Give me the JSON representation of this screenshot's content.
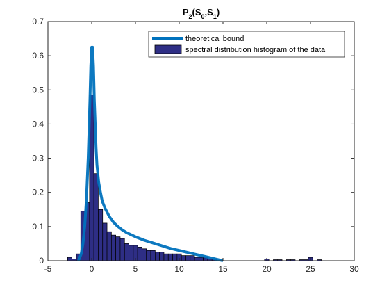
{
  "chart_data": {
    "type": "bar",
    "title": {
      "main": "P",
      "sub1": "2",
      "open": "(S",
      "sub2": "0",
      "mid": ",S",
      "sub3": "1",
      "close": ")"
    },
    "xlim": [
      -5,
      30
    ],
    "ylim": [
      0,
      0.7
    ],
    "xticks": [
      -5,
      0,
      5,
      10,
      15,
      20,
      25,
      30
    ],
    "yticks": [
      0,
      0.1,
      0.2,
      0.3,
      0.4,
      0.5,
      0.6,
      0.7
    ],
    "xtick_labels": [
      "-5",
      "0",
      "5",
      "10",
      "15",
      "20",
      "25",
      "30"
    ],
    "ytick_labels": [
      "0",
      "0.1",
      "0.2",
      "0.3",
      "0.4",
      "0.5",
      "0.6",
      "0.7"
    ],
    "grid": false,
    "legend_position": "top-right",
    "series": [
      {
        "name": "theoretical bound",
        "kind": "line",
        "color": "#0072bd",
        "x": [
          -1.5,
          -1.2,
          -1.0,
          -0.8,
          -0.6,
          -0.4,
          -0.2,
          -0.1,
          0.0,
          0.1,
          0.2,
          0.3,
          0.4,
          0.5,
          0.6,
          0.8,
          1.0,
          1.2,
          1.5,
          2.0,
          2.5,
          3.0,
          3.5,
          4.0,
          5.0,
          6.0,
          7.0,
          8.0,
          9.0,
          10.0,
          11.0,
          12.0,
          13.0,
          14.0,
          14.5,
          15.0
        ],
        "y": [
          0.0,
          0.02,
          0.05,
          0.1,
          0.18,
          0.3,
          0.47,
          0.57,
          0.625,
          0.625,
          0.57,
          0.47,
          0.4,
          0.33,
          0.28,
          0.23,
          0.2,
          0.175,
          0.155,
          0.13,
          0.112,
          0.1,
          0.09,
          0.082,
          0.07,
          0.06,
          0.052,
          0.044,
          0.036,
          0.03,
          0.024,
          0.018,
          0.012,
          0.006,
          0.003,
          0.0
        ]
      },
      {
        "name": "spectral distribution histogram of the  data",
        "kind": "histogram",
        "color": "#2e2e85",
        "edge_color": "#000000",
        "bin_width": 0.5,
        "centers": [
          -2.5,
          -2.0,
          -1.5,
          -1.0,
          -0.5,
          0.0,
          0.5,
          1.0,
          1.5,
          2.0,
          2.5,
          3.0,
          3.5,
          4.0,
          4.5,
          5.0,
          5.5,
          6.0,
          6.5,
          7.0,
          7.5,
          8.0,
          8.5,
          9.0,
          9.5,
          10.0,
          10.5,
          11.0,
          11.5,
          12.0,
          12.5,
          13.0,
          13.5,
          14.0,
          20.0,
          21.0,
          21.5,
          22.5,
          23.0,
          24.0,
          24.5,
          25.0,
          26.0
        ],
        "values": [
          0.01,
          0.005,
          0.02,
          0.145,
          0.17,
          0.485,
          0.255,
          0.15,
          0.11,
          0.085,
          0.075,
          0.07,
          0.065,
          0.05,
          0.045,
          0.045,
          0.04,
          0.035,
          0.03,
          0.03,
          0.025,
          0.025,
          0.02,
          0.02,
          0.02,
          0.02,
          0.015,
          0.015,
          0.015,
          0.01,
          0.01,
          0.01,
          0.005,
          0.005,
          0.005,
          0.003,
          0.003,
          0.003,
          0.003,
          0.003,
          0.003,
          0.01,
          0.003
        ]
      }
    ]
  }
}
